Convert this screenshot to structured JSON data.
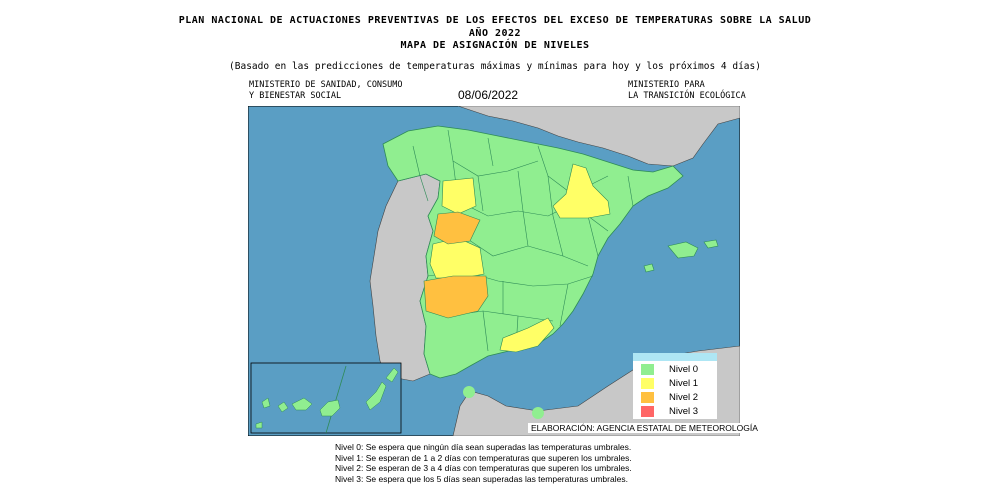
{
  "header": {
    "title_line1": "PLAN NACIONAL DE ACTUACIONES PREVENTIVAS DE LOS EFECTOS DEL EXCESO DE TEMPERATURAS SOBRE LA SALUD",
    "title_line2": "AÑO 2022",
    "title_line3": "MAPA DE ASIGNACIÓN DE NIVELES",
    "subtitle": "(Basado en las predicciones de temperaturas máximas y mínimas para hoy y los próximos 4 días)",
    "org_left_1": "MINISTERIO DE SANIDAD, CONSUMO",
    "org_left_2": "Y BIENESTAR SOCIAL",
    "date": "08/06/2022",
    "org_right_1": "MINISTERIO PARA",
    "org_right_2": "LA TRANSICIÓN ECOLÓGICA"
  },
  "colors": {
    "sea": "#5a9ec4",
    "land_foreign": "#c8c8c8",
    "nivel0": "#90ee90",
    "nivel1": "#ffff66",
    "nivel2": "#ffc040",
    "nivel3": "#ff6666",
    "border": "#2e8b57"
  },
  "legend": {
    "items": [
      {
        "label": "Nivel 0",
        "color": "#90ee90"
      },
      {
        "label": "Nivel 1",
        "color": "#ffff66"
      },
      {
        "label": "Nivel 2",
        "color": "#ffc040"
      },
      {
        "label": "Nivel 3",
        "color": "#ff6666"
      }
    ]
  },
  "credit": "ELABORACIÓN: AGENCIA ESTATAL DE METEOROLOGÍA",
  "notes": [
    "Nivel 0: Se espera que ningún día sean superadas las temperaturas umbrales.",
    "Nivel 1:  Se esperan de 1  a 2 días con temperaturas que superen los umbrales.",
    "Nivel 2: Se esperan de 3 a 4 días con temperaturas que superen los umbrales.",
    "Nivel 3: Se espera que los 5 días sean superadas las temperaturas umbrales."
  ]
}
